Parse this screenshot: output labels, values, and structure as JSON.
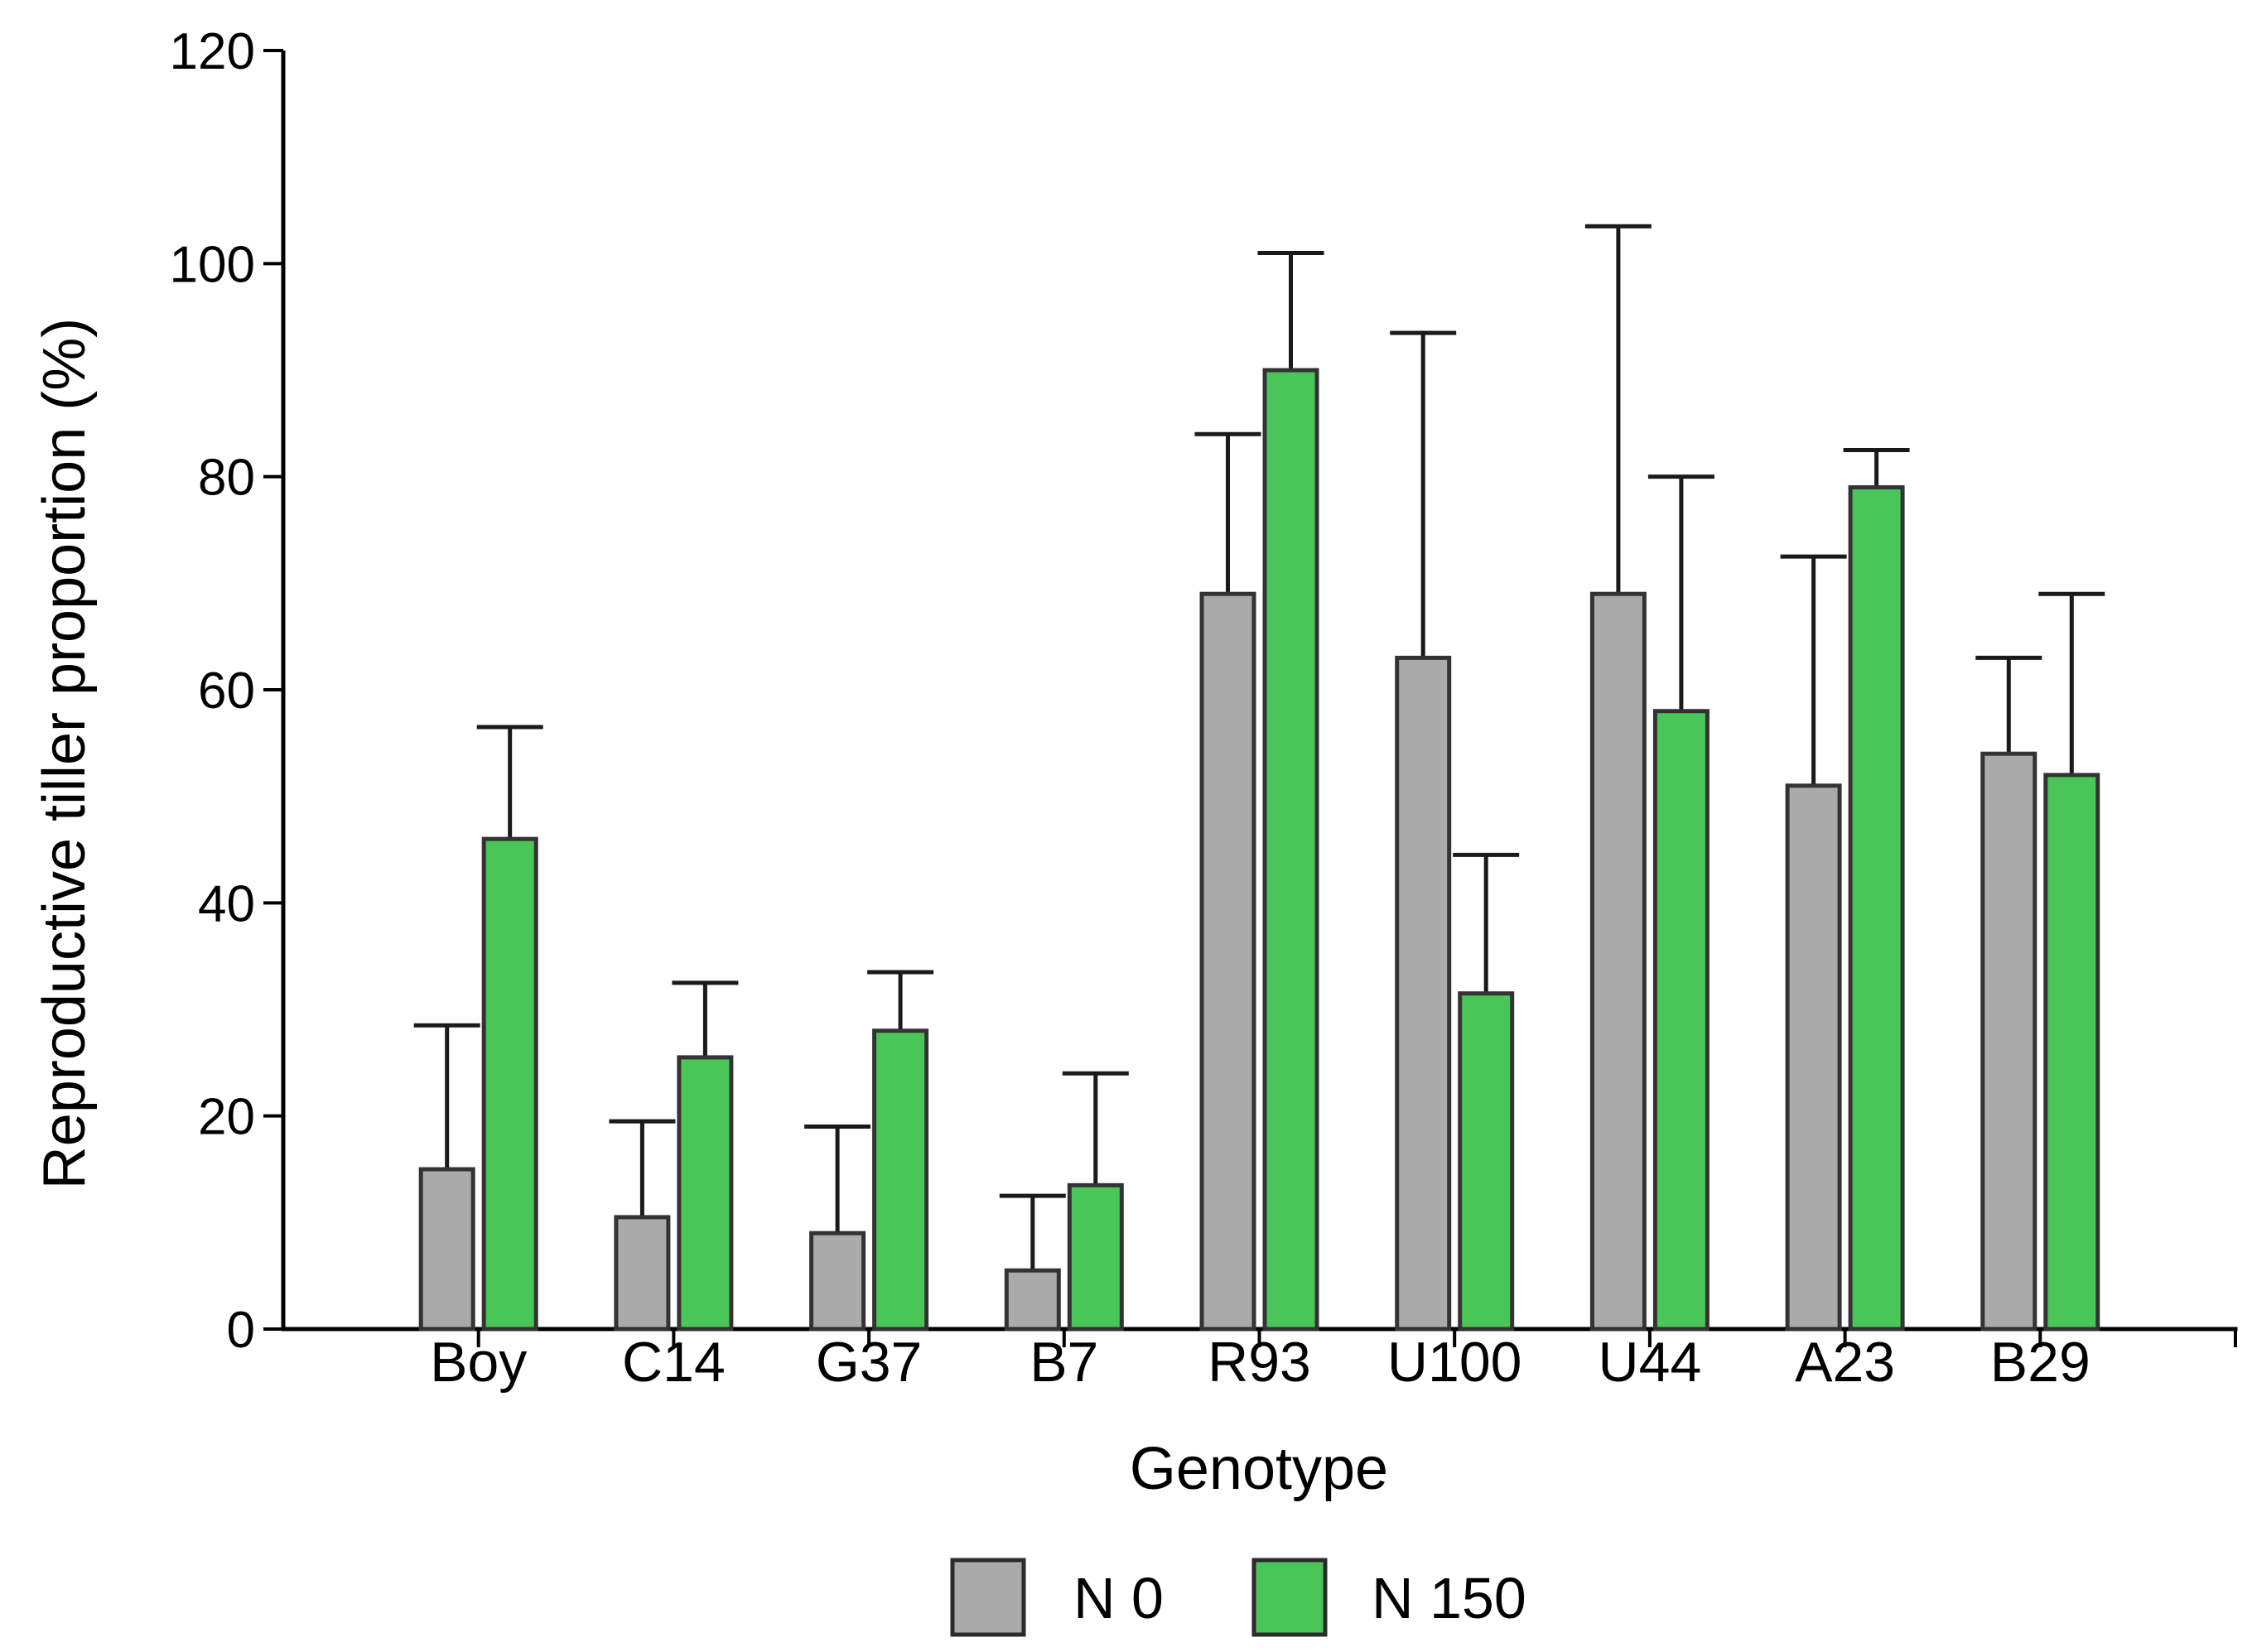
{
  "page": {
    "background": "#ffffff"
  },
  "chart_data": {
    "type": "bar",
    "title": "",
    "xlabel": "Genotype",
    "ylabel": "Reproductive tiller proportion (%)",
    "categories": [
      "Boy",
      "C14",
      "G37",
      "B7",
      "R93",
      "U100",
      "U44",
      "A23",
      "B29"
    ],
    "series": [
      {
        "name": "N 0",
        "color": "#AAAAAA",
        "values": [
          15,
          10.5,
          9,
          5.5,
          69,
          63,
          69,
          51,
          54
        ],
        "error_plus": [
          13.5,
          9,
          10,
          7,
          15,
          30.5,
          34.5,
          21.5,
          9
        ]
      },
      {
        "name": "N 150",
        "color": "#4AC658",
        "values": [
          46,
          25.5,
          28,
          13.5,
          90,
          31.5,
          58,
          79,
          52
        ],
        "error_plus": [
          10.5,
          7,
          5.5,
          10.5,
          11,
          13,
          22,
          3.5,
          17
        ]
      }
    ],
    "ylim": [
      0,
      120
    ],
    "ytick_step": 20,
    "ytick_labels": [
      "0",
      "20",
      "40",
      "60",
      "80",
      "100",
      "120"
    ],
    "grid": false,
    "legend_position": "bottom",
    "bar_outline_color": "#333333",
    "error_bar_color": "#1a1a1a",
    "axis_color": "#000000"
  }
}
